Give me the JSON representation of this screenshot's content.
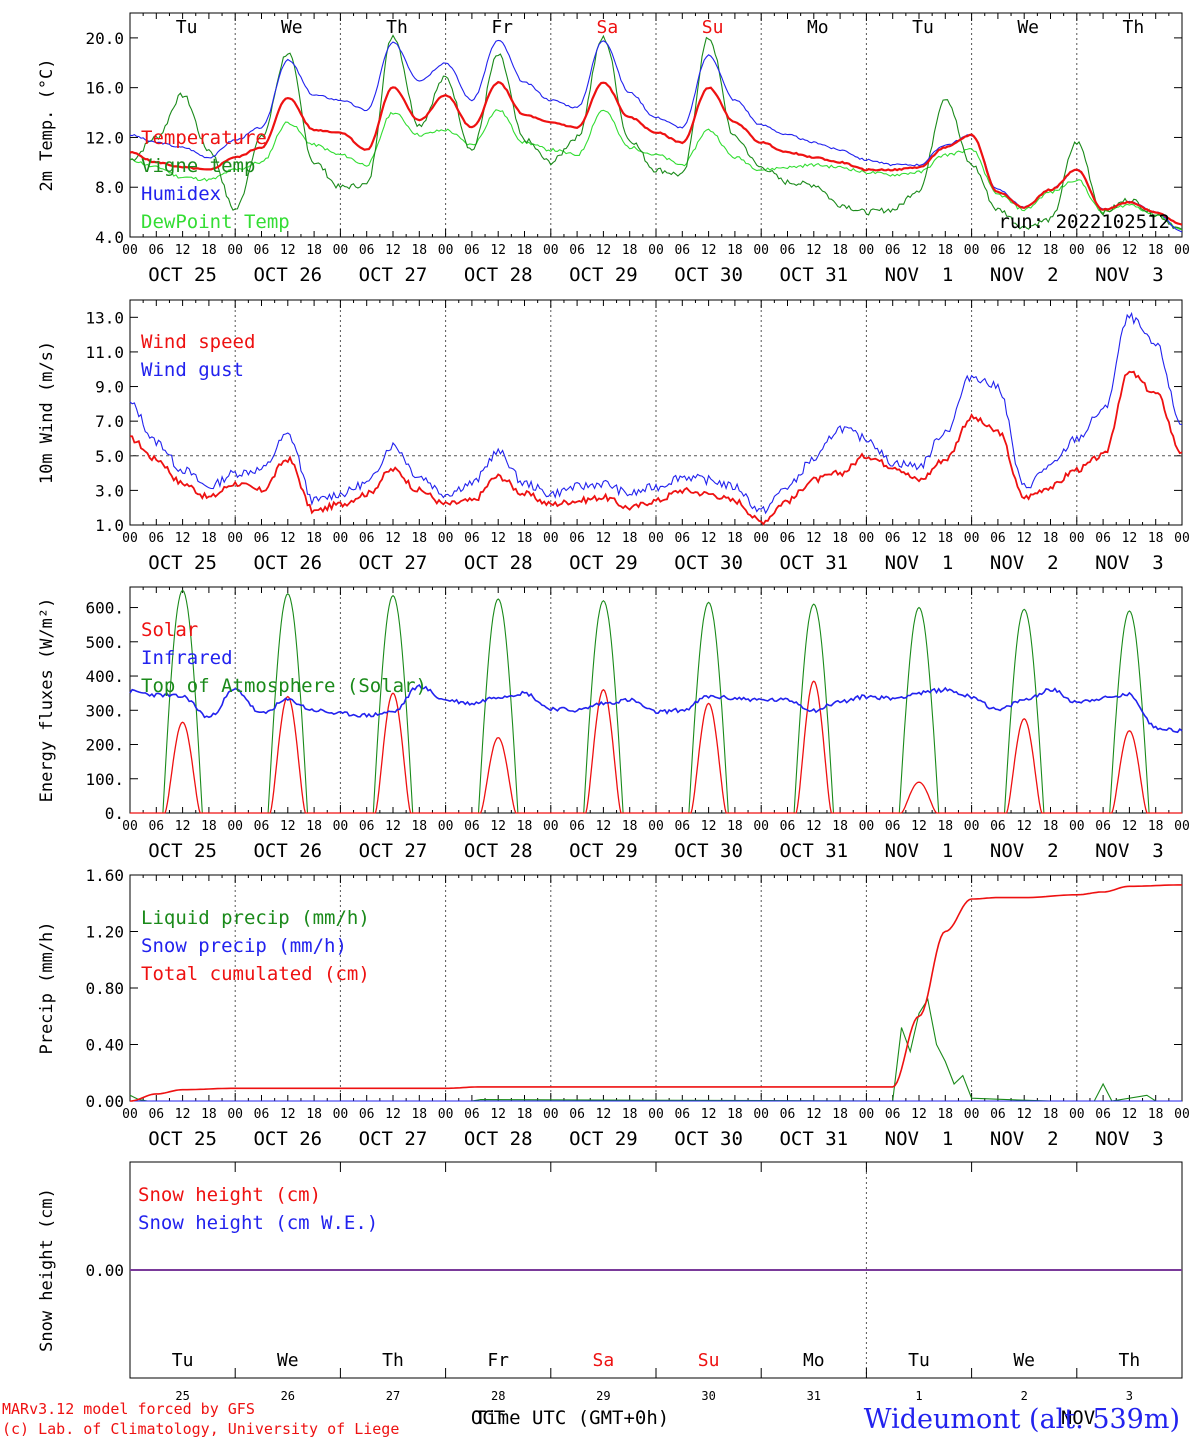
{
  "colors": {
    "red": "#ee1111",
    "green": "#1a8a1a",
    "blue": "#2222ee",
    "light_green": "#33dd33",
    "purple": "#7a3a9a"
  },
  "x_axis": {
    "hour_ticks": [
      "00",
      "06",
      "12",
      "18"
    ],
    "final_tick": "00",
    "dates": [
      "OCT 25",
      "OCT 26",
      "OCT 27",
      "OCT 28",
      "OCT 29",
      "OCT 30",
      "OCT 31",
      "NOV  1",
      "NOV  2",
      "NOV  3"
    ],
    "weekdays": [
      {
        "label": "Tu",
        "weekend": false
      },
      {
        "label": "We",
        "weekend": false
      },
      {
        "label": "Th",
        "weekend": false
      },
      {
        "label": "Fr",
        "weekend": false
      },
      {
        "label": "Sa",
        "weekend": true
      },
      {
        "label": "Su",
        "weekend": true
      },
      {
        "label": "Mo",
        "weekend": false
      },
      {
        "label": "Tu",
        "weekend": false
      },
      {
        "label": "We",
        "weekend": false
      },
      {
        "label": "Th",
        "weekend": false
      }
    ],
    "day_numbers": [
      "25",
      "26",
      "27",
      "28",
      "29",
      "30",
      "31",
      "1",
      "2",
      "3"
    ],
    "month_labels": [
      "OCT",
      "NOV"
    ],
    "time_label": "Time UTC (GMT+0h)"
  },
  "footer": {
    "model_line": "MARv3.12 model forced by GFS",
    "credit_line": "(c) Lab. of Climatology, University of Liege",
    "station": "Wideumont (alt. 539m)"
  },
  "chart_data": [
    {
      "id": "temp",
      "type": "line",
      "ylabel": "2m Temp. (°C)",
      "ylim": [
        4,
        22
      ],
      "yticks": [
        "20.0",
        "16.0",
        "12.0",
        "8.0",
        "4.0"
      ],
      "ytick_values": [
        20,
        16,
        12,
        8,
        4
      ],
      "run_label": "run: 2022102512",
      "legend": [
        {
          "name": "Temperature",
          "color": "#ee1111"
        },
        {
          "name": "Vigne temp",
          "color": "#1a8a1a"
        },
        {
          "name": "Humidex",
          "color": "#2222ee"
        },
        {
          "name": "DewPoint Temp",
          "color": "#33dd33"
        }
      ],
      "x_hours": [
        0,
        6,
        12,
        18,
        24,
        30,
        36,
        42,
        48,
        54,
        60,
        66,
        72,
        78,
        84,
        90,
        96,
        102,
        108,
        114,
        120,
        126,
        132,
        138,
        144,
        150,
        156,
        162,
        168,
        174,
        180,
        186,
        192,
        198,
        204,
        210,
        216,
        222,
        228,
        234,
        240
      ],
      "series": [
        {
          "name": "Temperature",
          "color": "#ee1111",
          "values": [
            10.8,
            10.0,
            9.6,
            9.4,
            10.4,
            11.2,
            15.2,
            12.6,
            12.4,
            11.0,
            16.0,
            13.4,
            15.4,
            12.8,
            16.4,
            13.8,
            13.2,
            12.8,
            16.4,
            13.6,
            12.4,
            11.6,
            16.0,
            13.2,
            11.6,
            10.8,
            10.4,
            10.0,
            9.4,
            9.4,
            9.6,
            11.2,
            12.2,
            7.6,
            6.4,
            7.8,
            9.4,
            6.2,
            6.8,
            6.0,
            5.0
          ]
        },
        {
          "name": "Vigne temp",
          "color": "#1a8a1a",
          "values": [
            10.2,
            12.0,
            15.4,
            11.0,
            6.2,
            12.0,
            18.8,
            10.0,
            8.0,
            8.2,
            20.2,
            13.0,
            16.8,
            11.0,
            18.6,
            11.8,
            10.0,
            12.0,
            20.0,
            11.8,
            9.4,
            9.0,
            20.0,
            12.0,
            9.6,
            8.4,
            8.2,
            6.6,
            6.0,
            6.2,
            7.8,
            15.2,
            9.8,
            6.2,
            4.8,
            5.4,
            11.6,
            6.0,
            7.0,
            5.8,
            4.6
          ]
        },
        {
          "name": "Humidex",
          "color": "#2222ee",
          "values": [
            12.2,
            11.6,
            11.2,
            10.4,
            11.8,
            12.8,
            18.2,
            15.4,
            15.0,
            14.2,
            19.6,
            16.6,
            18.0,
            15.0,
            19.8,
            16.4,
            15.0,
            14.4,
            19.8,
            15.6,
            13.6,
            12.8,
            18.6,
            15.0,
            13.0,
            12.2,
            11.6,
            11.0,
            10.2,
            9.8,
            9.8,
            11.4,
            12.2,
            7.8,
            6.4,
            7.8,
            9.4,
            6.2,
            6.8,
            6.0,
            4.4
          ]
        },
        {
          "name": "DewPoint Temp",
          "color": "#33dd33",
          "values": [
            10.2,
            9.6,
            8.8,
            8.6,
            9.4,
            10.0,
            13.2,
            11.4,
            10.6,
            9.8,
            14.0,
            12.2,
            12.6,
            11.4,
            14.2,
            11.6,
            11.0,
            10.6,
            14.2,
            11.2,
            10.6,
            9.8,
            12.6,
            10.4,
            9.4,
            9.6,
            9.8,
            9.6,
            9.2,
            9.0,
            9.2,
            10.6,
            11.0,
            7.4,
            6.2,
            7.6,
            8.6,
            6.0,
            6.6,
            5.8,
            4.6
          ]
        }
      ]
    },
    {
      "id": "wind",
      "type": "line",
      "ylabel": "10m Wind (m/s)",
      "ylim": [
        1,
        14
      ],
      "yticks": [
        "13.0",
        "11.0",
        "9.0",
        "7.0",
        "5.0",
        "3.0",
        "1.0"
      ],
      "ytick_values": [
        13,
        11,
        9,
        7,
        5,
        3,
        1
      ],
      "reference_line": 5,
      "legend": [
        {
          "name": "Wind speed",
          "color": "#ee1111"
        },
        {
          "name": "Wind gust",
          "color": "#2222ee"
        }
      ],
      "x_hours": [
        0,
        6,
        12,
        18,
        24,
        30,
        36,
        42,
        48,
        54,
        60,
        66,
        72,
        78,
        84,
        90,
        96,
        102,
        108,
        114,
        120,
        126,
        132,
        138,
        144,
        150,
        156,
        162,
        168,
        174,
        180,
        186,
        192,
        198,
        204,
        210,
        216,
        222,
        228,
        234,
        240
      ],
      "series": [
        {
          "name": "Wind speed",
          "color": "#ee1111",
          "values": [
            6.0,
            4.8,
            3.4,
            2.6,
            3.4,
            3.0,
            4.8,
            1.8,
            2.2,
            2.8,
            4.2,
            3.0,
            2.2,
            2.4,
            3.8,
            2.8,
            2.2,
            2.4,
            2.6,
            2.0,
            2.4,
            3.0,
            2.8,
            2.4,
            1.2,
            2.4,
            3.6,
            4.0,
            5.0,
            4.4,
            3.6,
            4.8,
            7.2,
            6.4,
            2.6,
            3.2,
            4.2,
            5.0,
            9.8,
            8.6,
            5.2
          ]
        },
        {
          "name": "Wind gust",
          "color": "#2222ee",
          "values": [
            8.0,
            5.8,
            4.2,
            3.2,
            4.0,
            4.2,
            6.2,
            2.4,
            2.8,
            3.4,
            5.6,
            3.8,
            2.8,
            3.4,
            5.2,
            3.4,
            2.8,
            3.2,
            3.4,
            2.8,
            3.2,
            3.8,
            3.6,
            3.2,
            1.8,
            3.2,
            4.8,
            6.6,
            6.0,
            4.6,
            4.4,
            6.4,
            9.6,
            9.0,
            3.2,
            4.4,
            6.0,
            7.6,
            13.0,
            11.4,
            6.8
          ]
        }
      ]
    },
    {
      "id": "energy",
      "type": "line",
      "ylabel": "Energy fluxes (W/m²)",
      "ylim": [
        0,
        660
      ],
      "yticks": [
        "600.",
        "500.",
        "400.",
        "300.",
        "200.",
        "100.",
        "0."
      ],
      "ytick_values": [
        600,
        500,
        400,
        300,
        200,
        100,
        0
      ],
      "legend": [
        {
          "name": "Solar",
          "color": "#ee1111"
        },
        {
          "name": "Infrared",
          "color": "#2222ee"
        },
        {
          "name": "Top of Atmosphere (Solar)",
          "color": "#1a8a1a"
        }
      ],
      "toa_peaks": [
        650,
        640,
        635,
        625,
        620,
        615,
        610,
        600,
        595,
        590
      ],
      "solar_peaks": [
        265,
        340,
        350,
        220,
        360,
        320,
        385,
        90,
        275,
        240
      ],
      "infrared_x_hours": [
        0,
        6,
        12,
        18,
        24,
        30,
        36,
        42,
        48,
        54,
        60,
        66,
        72,
        78,
        84,
        90,
        96,
        102,
        108,
        114,
        120,
        126,
        132,
        138,
        144,
        150,
        156,
        162,
        168,
        174,
        180,
        186,
        192,
        198,
        204,
        210,
        216,
        222,
        228,
        234,
        240
      ],
      "infrared_values": [
        355,
        345,
        340,
        280,
        360,
        290,
        330,
        300,
        290,
        285,
        295,
        370,
        330,
        320,
        340,
        350,
        305,
        300,
        320,
        330,
        295,
        300,
        340,
        335,
        330,
        330,
        300,
        325,
        340,
        335,
        350,
        360,
        340,
        300,
        330,
        360,
        325,
        335,
        345,
        250,
        240
      ]
    },
    {
      "id": "precip",
      "type": "line",
      "ylabel": "Precip (mm/h)",
      "ylim": [
        0,
        1.6
      ],
      "yticks": [
        "1.60",
        "1.20",
        "0.80",
        "0.40",
        "0.00"
      ],
      "ytick_values": [
        1.6,
        1.2,
        0.8,
        0.4,
        0.0
      ],
      "legend": [
        {
          "name": "Liquid precip (mm/h)",
          "color": "#1a8a1a"
        },
        {
          "name": "Snow precip (mm/h)",
          "color": "#2222ee"
        },
        {
          "name": "Total cumulated (cm)",
          "color": "#ee1111"
        }
      ],
      "cumulated_x_hours": [
        0,
        6,
        12,
        24,
        48,
        72,
        80,
        96,
        120,
        144,
        168,
        174,
        180,
        186,
        192,
        198,
        204,
        216,
        222,
        228,
        240
      ],
      "cumulated_values": [
        0.0,
        0.05,
        0.08,
        0.09,
        0.09,
        0.09,
        0.1,
        0.1,
        0.1,
        0.1,
        0.1,
        0.1,
        0.6,
        1.2,
        1.43,
        1.44,
        1.44,
        1.46,
        1.48,
        1.52,
        1.53
      ],
      "liquid_x_hours": [
        0,
        2,
        4,
        78,
        80,
        174,
        176,
        178,
        180,
        182,
        184,
        186,
        188,
        190,
        192,
        200,
        210,
        220,
        222,
        224,
        232,
        234,
        240
      ],
      "liquid_values": [
        0.04,
        0.01,
        0.0,
        0.0,
        0.01,
        0.0,
        0.52,
        0.35,
        0.62,
        0.72,
        0.4,
        0.28,
        0.12,
        0.18,
        0.02,
        0.01,
        0.0,
        0.0,
        0.12,
        0.0,
        0.04,
        0.0,
        0.0
      ]
    },
    {
      "id": "snow",
      "type": "line",
      "ylabel": "Snow height (cm)",
      "ylim": [
        -1,
        1
      ],
      "yticks": [
        "0.00"
      ],
      "ytick_values": [
        0
      ],
      "legend": [
        {
          "name": "Snow height (cm)",
          "color": "#ee1111"
        },
        {
          "name": "Snow height (cm W.E.)",
          "color": "#2222ee"
        }
      ],
      "series": [
        {
          "name": "Snow height (cm)",
          "color": "#ee1111",
          "values": [
            0,
            0
          ]
        },
        {
          "name": "Snow height (cm W.E.)",
          "color": "#2222ee",
          "values": [
            0,
            0
          ]
        }
      ]
    }
  ]
}
